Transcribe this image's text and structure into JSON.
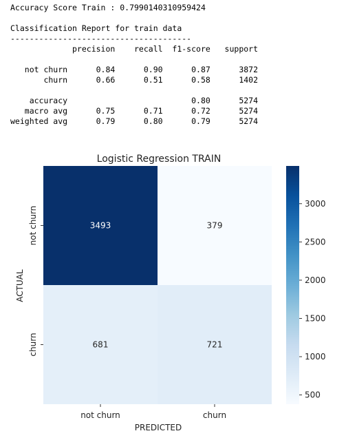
{
  "output": {
    "accuracy_line": "Accuracy Score Train : 0.7990140310959424",
    "report_title": "Classification Report for train data",
    "separator": "--------------------------------------",
    "header": [
      "",
      "precision",
      "recall",
      "f1-score",
      "support"
    ],
    "rows": [
      {
        "label": "not churn",
        "precision": "0.84",
        "recall": "0.90",
        "f1": "0.87",
        "support": "3872"
      },
      {
        "label": "churn",
        "precision": "0.66",
        "recall": "0.51",
        "f1": "0.58",
        "support": "1402"
      }
    ],
    "summary": [
      {
        "label": "accuracy",
        "precision": "",
        "recall": "",
        "f1": "0.80",
        "support": "5274"
      },
      {
        "label": "macro avg",
        "precision": "0.75",
        "recall": "0.71",
        "f1": "0.72",
        "support": "5274"
      },
      {
        "label": "weighted avg",
        "precision": "0.79",
        "recall": "0.80",
        "f1": "0.79",
        "support": "5274"
      }
    ]
  },
  "chart_data": {
    "type": "heatmap",
    "title": "Logistic Regression TRAIN",
    "xlabel": "PREDICTED",
    "ylabel": "ACTUAL",
    "x_categories": [
      "not churn",
      "churn"
    ],
    "y_categories": [
      "not churn",
      "churn"
    ],
    "values": [
      [
        3493,
        379
      ],
      [
        681,
        721
      ]
    ],
    "colormap": "Blues",
    "colorbar": {
      "min": 379,
      "max": 3493,
      "ticks": [
        500,
        1000,
        1500,
        2000,
        2500,
        3000
      ]
    },
    "colors": {
      "darkest": "#08306b",
      "lightest": "#f7fbff"
    }
  }
}
